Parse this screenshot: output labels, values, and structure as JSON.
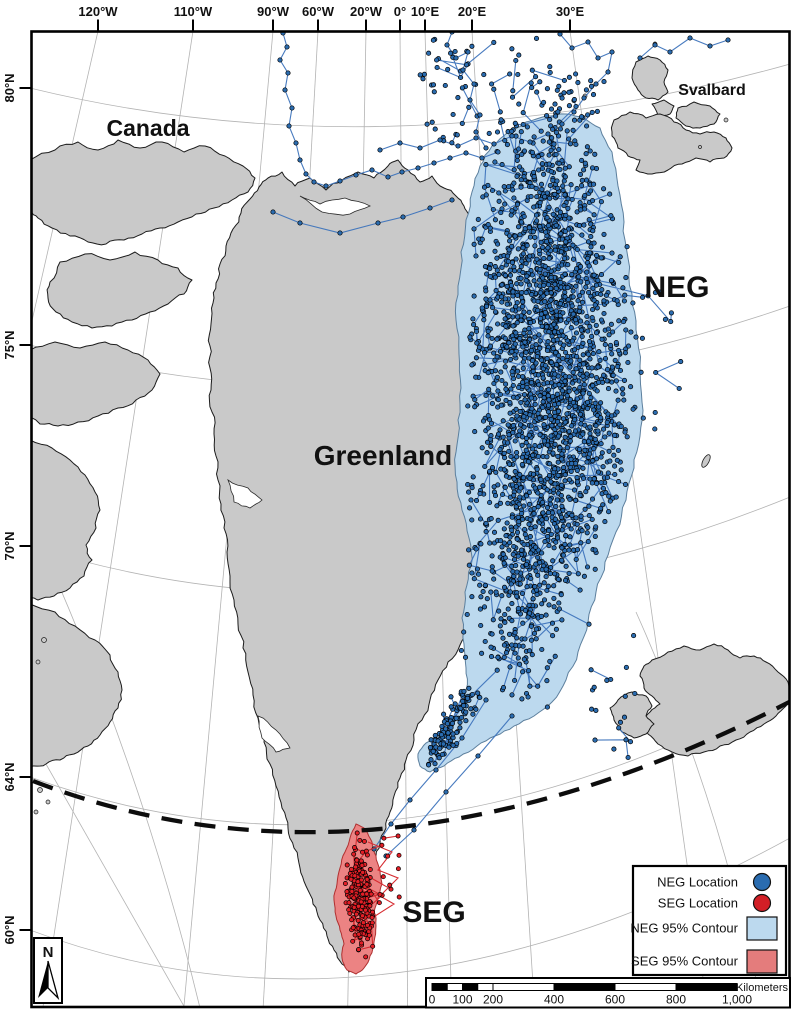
{
  "figure": {
    "type": "tracking-map",
    "description": "Map of Greenland with NEG and SEG animal tracking locations and 95% contours"
  },
  "labels": {
    "canada": "Canada",
    "greenland": "Greenland",
    "svalbard": "Svalbard",
    "neg": "NEG",
    "seg": "SEG"
  },
  "axes": {
    "top": [
      "120°W",
      "110°W",
      "90°W",
      "60°W",
      "20°W",
      "0°",
      "10°E",
      "20°E",
      "30°E"
    ],
    "left": [
      "80°N",
      "75°N",
      "70°N",
      "64°N",
      "60°N"
    ]
  },
  "legend": {
    "items": [
      {
        "label": "NEG Location",
        "swatch": "circle",
        "color": "#2a6cb0"
      },
      {
        "label": "SEG Location",
        "swatch": "circle",
        "color": "#d21f26"
      },
      {
        "label": "NEG 95% Contour",
        "swatch": "rect",
        "color": "#bcd9ee"
      },
      {
        "label": "SEG 95% Contour",
        "swatch": "rect",
        "color": "#e47c7c"
      }
    ]
  },
  "scalebar": {
    "ticks": [
      "0",
      "100",
      "200",
      "400",
      "600",
      "800",
      "1,000"
    ],
    "unit_label": "Kilometers"
  },
  "north_arrow": {
    "label": "N"
  },
  "colors": {
    "ocean": "#ffffff",
    "land": "#c9c9c9",
    "coast": "#1c1c1c",
    "graticule": "#b3b3b3",
    "neg_point": "#2a6cb0",
    "neg_line": "#3e74bc",
    "neg_contour": "#bcd9ee",
    "neg_contour_edge": "#5c7f9d",
    "seg_point": "#e31e26",
    "seg_line": "#d62b30",
    "seg_contour": "#ec8383",
    "seg_contour_edge": "#b03030",
    "boundary_dash": "#0d0d0d",
    "frame": "#000000"
  },
  "map_data": {
    "seed": 42,
    "neg_band_points": 2350,
    "neg_tail_points": 120,
    "neg_top_web_points": 60,
    "neg_outlier_points": 42,
    "seg_points": 200,
    "seg_outlier_points": 13
  }
}
